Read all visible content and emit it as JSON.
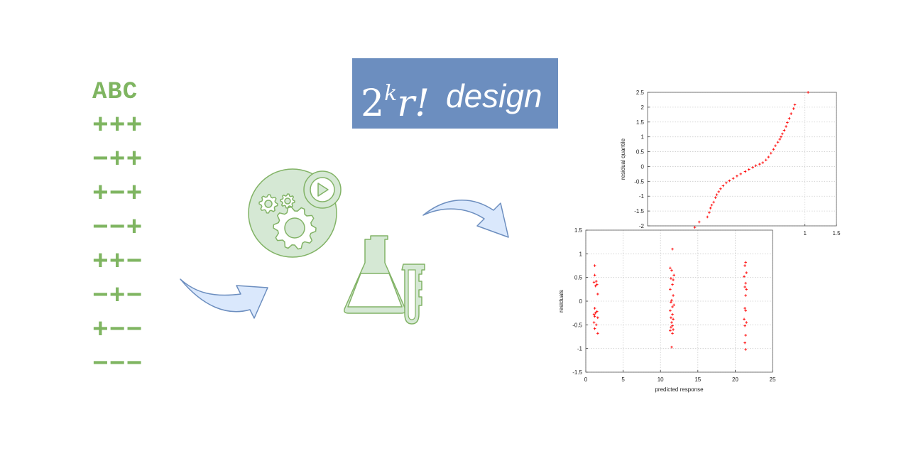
{
  "factor_table": {
    "header": "ABC",
    "rows": [
      "+++",
      "−++",
      "+−+",
      "−−+",
      "++−",
      "−+−",
      "+−−",
      "−−−"
    ]
  },
  "title": {
    "base": "2",
    "exponent": "k",
    "rest": "r!",
    "word": "design"
  },
  "colors": {
    "table_text": "#7fb561",
    "title_box": "#6c8ebf",
    "arrow_fill": "#dae8fc",
    "arrow_stroke": "#6c8ebf",
    "icon_fill": "#d5e8d4",
    "icon_stroke": "#82b366",
    "plot_points": "#ff0000"
  },
  "icons": [
    "gears-play-icon",
    "flask-icon",
    "arrow-curve-icon"
  ],
  "chart_data": [
    {
      "type": "scatter",
      "title": "",
      "xlabel": "",
      "ylabel": "residual quantile",
      "xlim": [
        -1.5,
        1.5
      ],
      "ylim": [
        -2,
        2.5
      ],
      "xticks": [
        1,
        1.5
      ],
      "yticks": [
        2.5,
        2,
        1.5,
        1,
        0.5,
        0,
        -0.5,
        -1,
        -1.5,
        -2
      ],
      "grid": true,
      "series": [
        {
          "points": [
            [
              -0.75,
              -2.05
            ],
            [
              -0.68,
              -1.87
            ],
            [
              -0.55,
              -1.7
            ],
            [
              -0.52,
              -1.55
            ],
            [
              -0.5,
              -1.4
            ],
            [
              -0.48,
              -1.3
            ],
            [
              -0.45,
              -1.2
            ],
            [
              -0.42,
              -1.05
            ],
            [
              -0.4,
              -0.95
            ],
            [
              -0.37,
              -0.85
            ],
            [
              -0.34,
              -0.75
            ],
            [
              -0.3,
              -0.65
            ],
            [
              -0.25,
              -0.55
            ],
            [
              -0.2,
              -0.48
            ],
            [
              -0.14,
              -0.4
            ],
            [
              -0.08,
              -0.32
            ],
            [
              -0.02,
              -0.25
            ],
            [
              0.05,
              -0.17
            ],
            [
              0.11,
              -0.1
            ],
            [
              0.17,
              -0.03
            ],
            [
              0.22,
              0.03
            ],
            [
              0.28,
              0.08
            ],
            [
              0.33,
              0.13
            ],
            [
              0.38,
              0.22
            ],
            [
              0.42,
              0.32
            ],
            [
              0.46,
              0.45
            ],
            [
              0.5,
              0.58
            ],
            [
              0.53,
              0.7
            ],
            [
              0.57,
              0.82
            ],
            [
              0.6,
              0.92
            ],
            [
              0.62,
              1.0
            ],
            [
              0.64,
              1.1
            ],
            [
              0.67,
              1.22
            ],
            [
              0.7,
              1.35
            ],
            [
              0.72,
              1.48
            ],
            [
              0.75,
              1.62
            ],
            [
              0.78,
              1.78
            ],
            [
              0.82,
              1.95
            ],
            [
              0.84,
              2.08
            ],
            [
              1.05,
              2.5
            ]
          ]
        }
      ]
    },
    {
      "type": "scatter",
      "title": "",
      "xlabel": "predicted response",
      "ylabel": "residuals",
      "xlim": [
        0,
        25
      ],
      "ylim": [
        -1.5,
        1.5
      ],
      "xticks": [
        0,
        5,
        10,
        15,
        20,
        25
      ],
      "yticks": [
        1.5,
        1,
        0.5,
        0,
        -0.5,
        -1,
        -1.5
      ],
      "grid": true,
      "series": [
        {
          "points": [
            [
              1.2,
              0.75
            ],
            [
              1.2,
              0.55
            ],
            [
              1.1,
              0.4
            ],
            [
              1.4,
              0.42
            ],
            [
              1.5,
              0.35
            ],
            [
              1.3,
              0.32
            ],
            [
              1.6,
              0.15
            ],
            [
              1.2,
              -0.15
            ],
            [
              1.3,
              -0.25
            ],
            [
              1.5,
              -0.22
            ],
            [
              1.1,
              -0.28
            ],
            [
              1.2,
              -0.32
            ],
            [
              1.6,
              -0.35
            ],
            [
              1.1,
              -0.45
            ],
            [
              1.4,
              -0.5
            ],
            [
              1.2,
              -0.58
            ],
            [
              1.6,
              -0.68
            ],
            [
              11.6,
              1.1
            ],
            [
              11.3,
              0.7
            ],
            [
              11.5,
              0.65
            ],
            [
              11.8,
              0.55
            ],
            [
              11.4,
              0.48
            ],
            [
              11.7,
              0.45
            ],
            [
              11.6,
              0.35
            ],
            [
              11.3,
              0.25
            ],
            [
              11.7,
              0.12
            ],
            [
              11.5,
              0.02
            ],
            [
              11.4,
              -0.02
            ],
            [
              11.8,
              -0.08
            ],
            [
              11.6,
              -0.12
            ],
            [
              11.3,
              -0.2
            ],
            [
              11.6,
              -0.28
            ],
            [
              11.4,
              -0.35
            ],
            [
              11.7,
              -0.38
            ],
            [
              11.5,
              -0.45
            ],
            [
              11.6,
              -0.52
            ],
            [
              11.4,
              -0.55
            ],
            [
              11.7,
              -0.6
            ],
            [
              11.3,
              -0.62
            ],
            [
              11.6,
              -0.68
            ],
            [
              11.5,
              -0.97
            ],
            [
              21.4,
              0.82
            ],
            [
              21.3,
              0.75
            ],
            [
              21.5,
              0.6
            ],
            [
              21.2,
              0.52
            ],
            [
              21.4,
              0.38
            ],
            [
              21.3,
              0.3
            ],
            [
              21.5,
              0.25
            ],
            [
              21.4,
              0.12
            ],
            [
              21.3,
              -0.15
            ],
            [
              21.4,
              -0.2
            ],
            [
              21.2,
              -0.38
            ],
            [
              21.5,
              -0.45
            ],
            [
              21.3,
              -0.52
            ],
            [
              21.4,
              -0.72
            ],
            [
              21.3,
              -0.88
            ],
            [
              21.4,
              -1.02
            ]
          ]
        }
      ]
    }
  ]
}
